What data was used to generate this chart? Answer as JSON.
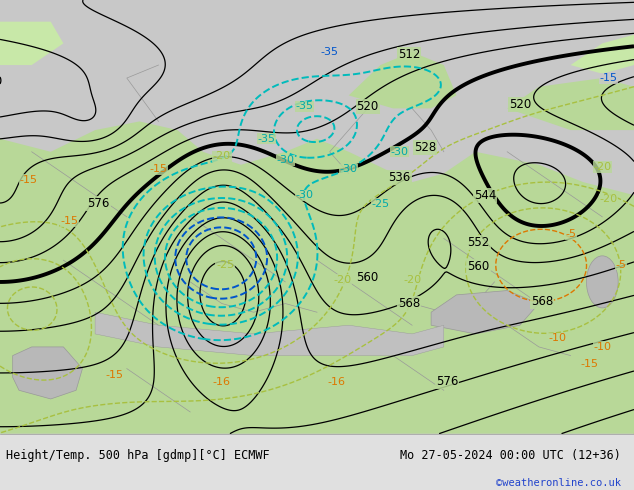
{
  "title_left": "Height/Temp. 500 hPa [gdmp][°C] ECMWF",
  "title_right": "Mo 27-05-2024 00:00 UTC (12+36)",
  "credit": "©weatheronline.co.uk",
  "bg_color": "#cccccc",
  "land_color_light": "#c8e8a8",
  "land_color": "#b8d898",
  "sea_color": "#c0c0c0",
  "label_color_cyan": "#00aaaa",
  "label_color_blue": "#0055cc",
  "label_color_orange": "#dd7700",
  "label_color_green_dark": "#6ab04c",
  "label_color_green_light": "#a8c840",
  "figsize": [
    6.34,
    4.9
  ],
  "dpi": 100,
  "bottom_bar_color": "#e0e0e0",
  "bottom_bar_height": 0.115
}
